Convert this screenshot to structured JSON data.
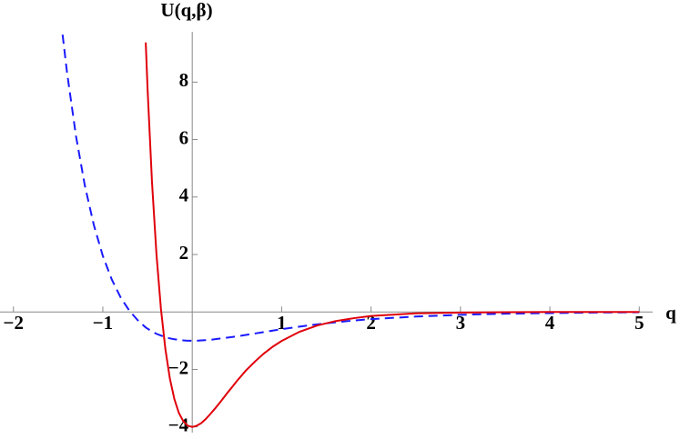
{
  "chart_data": {
    "type": "line",
    "x_label": "q",
    "y_label": "U(q,β)",
    "x": [
      -1.45,
      -1.4,
      -1.3,
      -1.2,
      -1.1,
      -1.0,
      -0.9,
      -0.8,
      -0.7,
      -0.6,
      -0.52,
      -0.5,
      -0.45,
      -0.4,
      -0.35,
      -0.3,
      -0.25,
      -0.2,
      -0.15,
      -0.1,
      -0.05,
      0,
      0.05,
      0.1,
      0.15,
      0.2,
      0.25,
      0.3,
      0.35,
      0.4,
      0.45,
      0.5,
      0.6,
      0.7,
      0.8,
      0.9,
      1.0,
      1.2,
      1.4,
      1.6,
      1.8,
      2.0,
      2.5,
      3,
      3.5,
      4,
      4.5,
      5
    ],
    "series": [
      {
        "color": "#1a1aff",
        "dashed": true,
        "values": [
          9.65,
          8.33,
          6.12,
          4.38,
          3.02,
          1.95,
          1.13,
          0.5,
          0.03,
          -0.32,
          -0.54,
          -0.58,
          -0.68,
          -0.76,
          -0.82,
          -0.88,
          -0.92,
          -0.95,
          -0.97,
          -0.99,
          -1,
          -1,
          -1,
          -0.99,
          -0.98,
          -0.97,
          -0.95,
          -0.93,
          -0.91,
          -0.89,
          -0.87,
          -0.85,
          -0.8,
          -0.75,
          -0.7,
          -0.65,
          -0.6,
          -0.51,
          -0.43,
          -0.36,
          -0.3,
          -0.25,
          -0.16,
          -0.1,
          -0.06,
          -0.04,
          -0.02,
          -0.01
        ]
      },
      {
        "color": "#e0000a",
        "dashed": false,
        "values": [
          null,
          null,
          null,
          null,
          null,
          null,
          null,
          null,
          null,
          null,
          9.38,
          7.8,
          4.52,
          2.01,
          0.11,
          -1.3,
          -2.32,
          -3.03,
          -3.51,
          -3.8,
          -3.96,
          -4,
          -3.96,
          -3.87,
          -3.73,
          -3.56,
          -3.38,
          -3.19,
          -2.99,
          -2.79,
          -2.6,
          -2.4,
          -2.04,
          -1.73,
          -1.45,
          -1.21,
          -1.01,
          -0.69,
          -0.47,
          -0.32,
          -0.22,
          -0.14,
          -0.05,
          -0.02,
          -0.01,
          0,
          0,
          0
        ]
      }
    ],
    "xlim": [
      -2.15,
      5.15
    ],
    "ylim": [
      -4.2,
      9.75
    ],
    "xticks": [
      {
        "value": -2,
        "label": "−2"
      },
      {
        "value": -1,
        "label": "−1"
      },
      1,
      2,
      3,
      4,
      5
    ],
    "yticks": [
      {
        "value": -4,
        "label": "−4"
      },
      {
        "value": -2,
        "label": "−2"
      },
      2,
      4,
      6,
      8
    ]
  }
}
